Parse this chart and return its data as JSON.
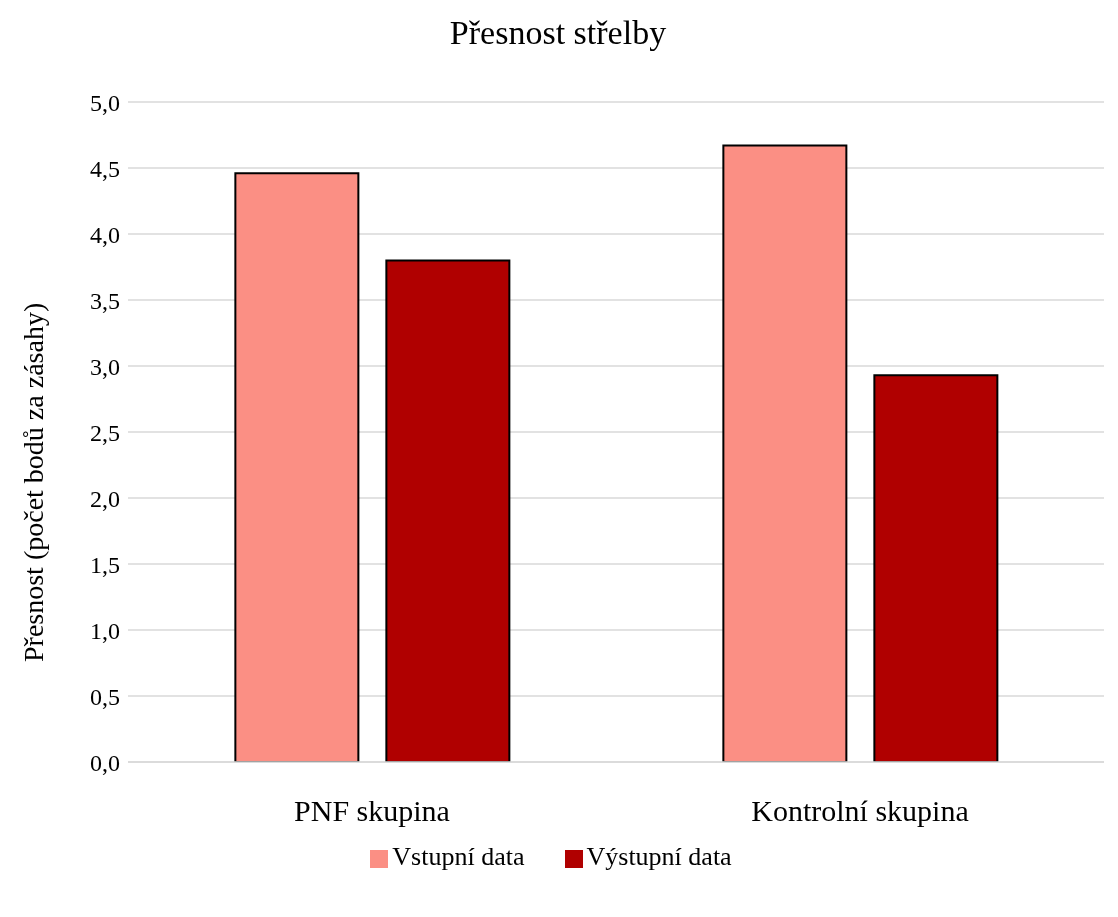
{
  "chart_data": {
    "type": "bar",
    "title": "Přesnost střelby",
    "ylabel": "Přesnost (počet bodů za zásahy)",
    "categories": [
      "PNF skupina",
      "Kontrolní skupina"
    ],
    "series": [
      {
        "name": "Vstupní data",
        "color": "#fb8f84",
        "values": [
          4.46,
          4.67
        ]
      },
      {
        "name": "Výstupní data",
        "color": "#b00000",
        "values": [
          3.8,
          2.93
        ]
      }
    ],
    "ylim": [
      0,
      5
    ],
    "yticks": [
      {
        "value": 0,
        "label": "0,0"
      },
      {
        "value": 0.5,
        "label": "0,5"
      },
      {
        "value": 1,
        "label": "1,0"
      },
      {
        "value": 1.5,
        "label": "1,5"
      },
      {
        "value": 2,
        "label": "2,0"
      },
      {
        "value": 2.5,
        "label": "2,5"
      },
      {
        "value": 3,
        "label": "3,0"
      },
      {
        "value": 3.5,
        "label": "3,5"
      },
      {
        "value": 4,
        "label": "4,0"
      },
      {
        "value": 4.5,
        "label": "4,5"
      },
      {
        "value": 5,
        "label": "5,0"
      }
    ],
    "grid": "y",
    "legend": "bottom"
  }
}
